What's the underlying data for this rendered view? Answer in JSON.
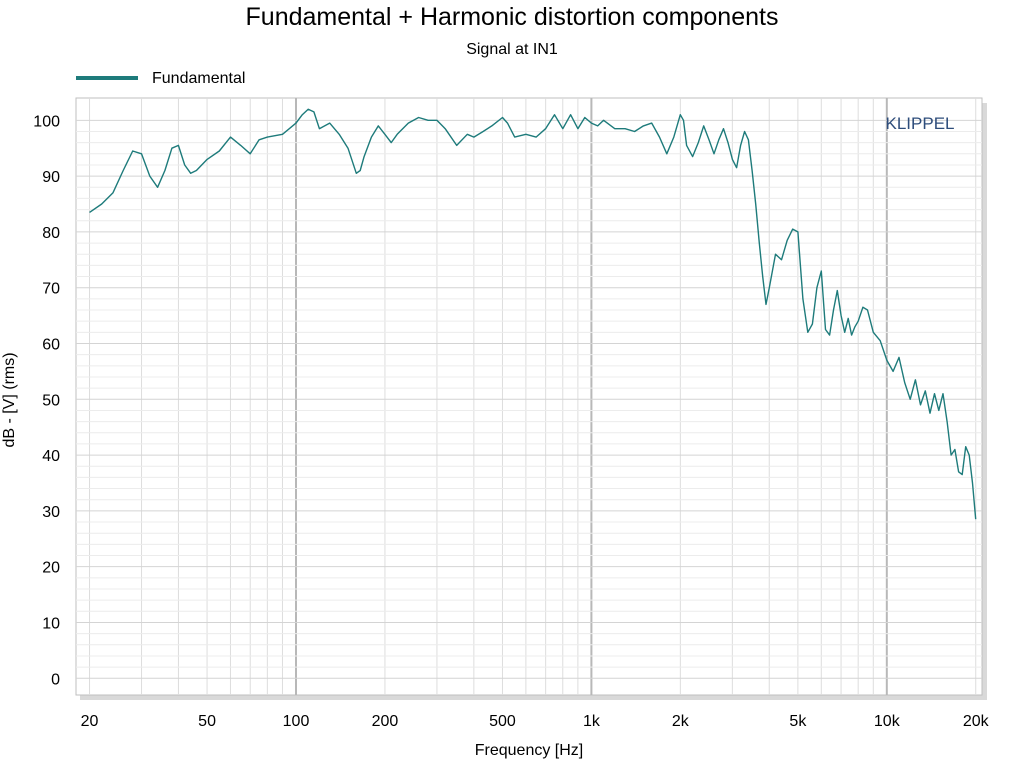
{
  "chart_data": {
    "type": "line",
    "title": "Fundamental + Harmonic distortion components",
    "subtitle": "Signal at IN1",
    "xlabel": "Frequency [Hz]",
    "ylabel": "dB - [V]  (rms)",
    "x_scale": "log",
    "xlim": [
      18,
      21000
    ],
    "ylim": [
      -3,
      104
    ],
    "x_ticks": [
      20,
      50,
      100,
      200,
      500,
      1000,
      2000,
      5000,
      10000,
      20000
    ],
    "x_tick_labels": [
      "20",
      "50",
      "100",
      "200",
      "500",
      "1k",
      "2k",
      "5k",
      "10k",
      "20k"
    ],
    "y_ticks": [
      0,
      10,
      20,
      30,
      40,
      50,
      60,
      70,
      80,
      90,
      100
    ],
    "y_tick_labels": [
      "0",
      "10",
      "20",
      "30",
      "40",
      "50",
      "60",
      "70",
      "80",
      "90",
      "100"
    ],
    "grid": true,
    "legend_position": "top-left",
    "watermark": "KLIPPEL",
    "series": [
      {
        "name": "Fundamental",
        "color": "#1e7b7b",
        "x": [
          20,
          22,
          24,
          26,
          28,
          30,
          32,
          34,
          36,
          38,
          40,
          42,
          44,
          46,
          50,
          55,
          60,
          65,
          70,
          75,
          80,
          90,
          100,
          105,
          110,
          115,
          120,
          130,
          140,
          150,
          160,
          165,
          170,
          180,
          190,
          200,
          210,
          220,
          240,
          260,
          280,
          300,
          320,
          350,
          380,
          400,
          430,
          460,
          500,
          520,
          550,
          600,
          650,
          700,
          750,
          800,
          850,
          900,
          950,
          1000,
          1050,
          1100,
          1200,
          1300,
          1400,
          1500,
          1600,
          1700,
          1800,
          1900,
          2000,
          2050,
          2100,
          2200,
          2300,
          2400,
          2500,
          2600,
          2700,
          2800,
          2900,
          3000,
          3100,
          3200,
          3300,
          3400,
          3500,
          3600,
          3700,
          3800,
          3900,
          4000,
          4200,
          4400,
          4600,
          4800,
          5000,
          5200,
          5400,
          5600,
          5800,
          6000,
          6200,
          6400,
          6600,
          6800,
          7000,
          7200,
          7400,
          7600,
          7800,
          8000,
          8300,
          8600,
          9000,
          9500,
          10000,
          10500,
          11000,
          11500,
          12000,
          12500,
          13000,
          13500,
          14000,
          14500,
          15000,
          15500,
          16000,
          16500,
          17000,
          17500,
          18000,
          18500,
          19000,
          19500,
          20000
        ],
        "y": [
          83.5,
          85.0,
          87.0,
          91.0,
          94.5,
          94.0,
          90.0,
          88.0,
          91.0,
          95.0,
          95.5,
          92.0,
          90.5,
          91.0,
          93.0,
          94.5,
          97.0,
          95.5,
          94.0,
          96.5,
          97.0,
          97.5,
          99.5,
          101.0,
          102.0,
          101.5,
          98.5,
          99.5,
          97.5,
          95.0,
          90.5,
          91.0,
          93.5,
          97.0,
          99.0,
          97.5,
          96.0,
          97.5,
          99.5,
          100.5,
          100.0,
          100.0,
          98.5,
          95.5,
          97.5,
          97.0,
          98.0,
          99.0,
          100.5,
          99.5,
          97.0,
          97.5,
          97.0,
          98.5,
          101.0,
          98.5,
          101.0,
          98.5,
          100.5,
          99.5,
          99.0,
          100.0,
          98.5,
          98.5,
          98.0,
          99.0,
          99.5,
          97.0,
          94.0,
          97.0,
          101.0,
          100.0,
          95.5,
          93.5,
          96.0,
          99.0,
          96.5,
          94.0,
          96.5,
          98.5,
          96.0,
          93.0,
          91.5,
          95.5,
          98.0,
          96.5,
          91.0,
          85.0,
          78.0,
          72.0,
          67.0,
          70.0,
          76.0,
          75.0,
          78.5,
          80.5,
          80.0,
          68.0,
          62.0,
          63.5,
          70.0,
          73.0,
          62.5,
          61.5,
          66.0,
          69.5,
          65.0,
          62.0,
          64.5,
          61.5,
          63.0,
          64.0,
          66.5,
          66.0,
          62.0,
          60.5,
          57.0,
          55.0,
          57.5,
          53.0,
          50.0,
          53.5,
          49.0,
          51.5,
          47.5,
          51.0,
          48.0,
          51.0,
          46.0,
          40.0,
          41.0,
          37.0,
          36.5,
          41.5,
          40.0,
          35.0,
          28.5
        ]
      }
    ]
  }
}
